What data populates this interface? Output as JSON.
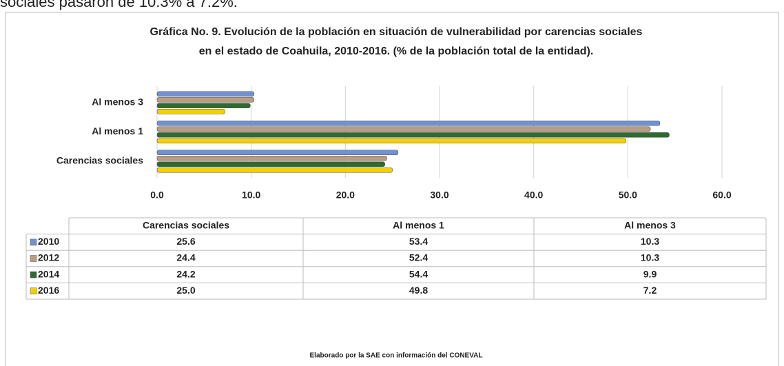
{
  "header_text": "sociales pasaron de 10.3% a 7.2%.",
  "chart_data": {
    "type": "bar",
    "orientation": "horizontal",
    "title": [
      "Gráfica No. 9. Evolución de la población en situación de vulnerabilidad por carencias sociales",
      "en el estado de Coahuila, 2010-2016. (% de la población total de la entidad)."
    ],
    "categories": [
      "Carencias sociales",
      "Al menos 1",
      "Al menos 3"
    ],
    "series": [
      {
        "name": "2010",
        "color": "#7191d1",
        "values": [
          25.6,
          53.4,
          10.3
        ],
        "value_labels": [
          "25.6",
          "53.4",
          "10.3"
        ]
      },
      {
        "name": "2012",
        "color": "#b99d82",
        "values": [
          24.4,
          52.4,
          10.3
        ],
        "value_labels": [
          "24.4",
          "52.4",
          "10.3"
        ]
      },
      {
        "name": "2014",
        "color": "#2f6a2f",
        "values": [
          24.2,
          54.4,
          9.9
        ],
        "value_labels": [
          "24.2",
          "54.4",
          "9.9"
        ]
      },
      {
        "name": "2016",
        "color": "#f3d000",
        "values": [
          25.0,
          49.8,
          7.2
        ],
        "value_labels": [
          "25.0",
          "49.8",
          "7.2"
        ]
      }
    ],
    "xlim": [
      0,
      60
    ],
    "xticks": [
      {
        "value": 0,
        "label": "0.0"
      },
      {
        "value": 10,
        "label": "10.0"
      },
      {
        "value": 20,
        "label": "20.0"
      },
      {
        "value": 30,
        "label": "30.0"
      },
      {
        "value": 40,
        "label": "40.0"
      },
      {
        "value": 50,
        "label": "50.0"
      },
      {
        "value": 60,
        "label": "60.0"
      }
    ],
    "grid": true,
    "source": "Elaborado por la SAE con información del CONEVAL"
  }
}
